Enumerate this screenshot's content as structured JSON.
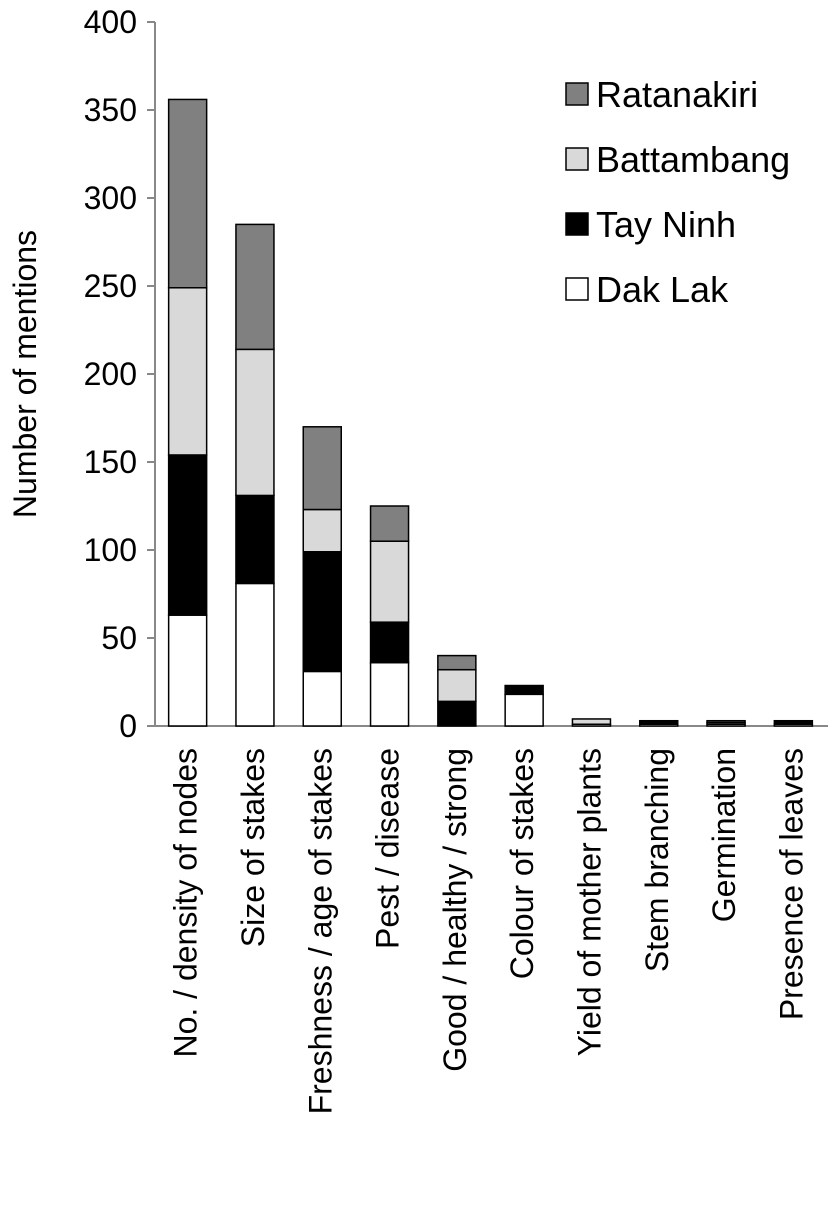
{
  "chart_data": {
    "type": "bar",
    "stacked": true,
    "title": "",
    "xlabel": "",
    "ylabel": "Number of mentions",
    "ylim": [
      0,
      400
    ],
    "yticks": [
      0,
      50,
      100,
      150,
      200,
      250,
      300,
      350,
      400
    ],
    "grid": false,
    "legend_position": "top-right",
    "categories": [
      "No. / density of nodes",
      "Size of stakes",
      "Freshness / age of stakes",
      "Pest / disease",
      "Good / healthy / strong",
      "Colour of stakes",
      "Yield of mother plants",
      "Stem branching",
      "Germination",
      "Presence of leaves"
    ],
    "series": [
      {
        "name": "Dak Lak",
        "color": "#ffffff",
        "values": [
          63,
          81,
          31,
          36,
          0,
          18,
          1,
          1,
          1,
          1
        ]
      },
      {
        "name": "Tay Ninh",
        "color": "#000000",
        "values": [
          91,
          50,
          68,
          23,
          14,
          5,
          0,
          2,
          0,
          2
        ]
      },
      {
        "name": "Battambang",
        "color": "#d9d9d9",
        "values": [
          95,
          83,
          24,
          46,
          18,
          0,
          3,
          0,
          1,
          0
        ]
      },
      {
        "name": "Ratanakiri",
        "color": "#808080",
        "values": [
          107,
          71,
          47,
          20,
          8,
          0,
          0,
          0,
          1,
          0
        ]
      }
    ]
  }
}
